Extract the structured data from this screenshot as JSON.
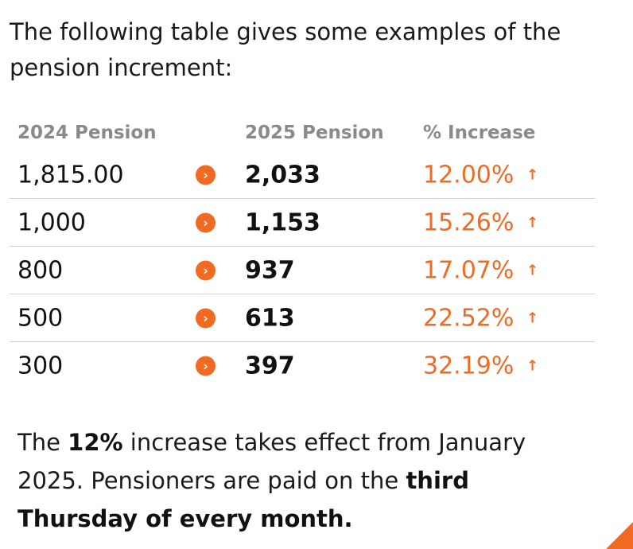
{
  "intro": {
    "text": "The following table gives some examples of the pension increment:"
  },
  "table": {
    "headers": [
      "2024 Pension",
      "2025 Pension",
      "% Increase"
    ],
    "rows": [
      {
        "old": "1,815.00",
        "new": "2,033",
        "pct": "12.00%"
      },
      {
        "old": "1,000",
        "new": "1,153",
        "pct": "15.26%"
      },
      {
        "old": "800",
        "new": "937",
        "pct": "17.07%"
      },
      {
        "old": "500",
        "new": "613",
        "pct": "22.52%"
      },
      {
        "old": "300",
        "new": "397",
        "pct": "32.19%"
      }
    ],
    "arrow_glyph": "›",
    "up_glyph": "↑"
  },
  "outro": {
    "part1": "The ",
    "bold1": "12%",
    "part2": " increase takes effect from January 2025. Pensioners are paid on the ",
    "bold2": "third Thursday of every month."
  },
  "colors": {
    "accent": "#f06a22",
    "header_gray": "#8a8a8a",
    "divider": "#cfcfcf"
  }
}
